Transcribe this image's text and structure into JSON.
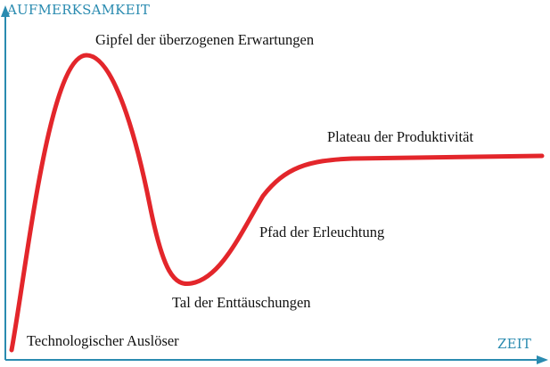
{
  "colors": {
    "axis": "#2a8bb0",
    "curve": "#e3262b",
    "text": "#111111",
    "background": "#ffffff"
  },
  "axes": {
    "y_label": "AUFMERKSAMKEIT",
    "x_label": "ZEIT"
  },
  "phases": {
    "trigger": "Technologischer Auslöser",
    "peak": "Gipfel der überzogenen Erwartungen",
    "trough": "Tal der Enttäuschungen",
    "slope": "Pfad der Erleuchtung",
    "plateau": "Plateau der Produktivität"
  }
}
